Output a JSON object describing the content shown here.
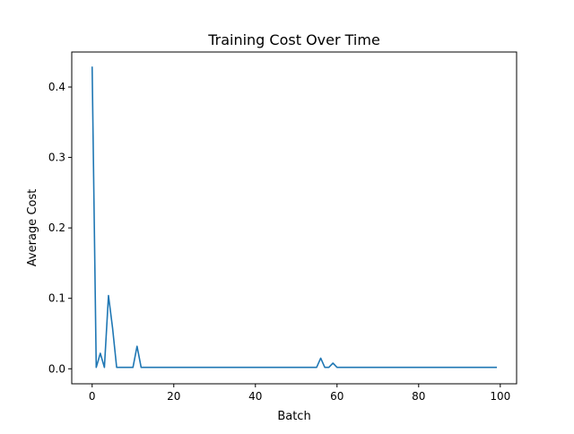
{
  "chart_data": {
    "type": "line",
    "title": "Training Cost Over Time",
    "xlabel": "Batch",
    "ylabel": "Average Cost",
    "xlim": [
      -5,
      104
    ],
    "ylim": [
      -0.0213,
      0.4497
    ],
    "xticks": [
      0,
      20,
      40,
      60,
      80,
      100
    ],
    "yticks": [
      0.0,
      0.1,
      0.2,
      0.3,
      0.4
    ],
    "xtick_labels": [
      "0",
      "20",
      "40",
      "60",
      "80",
      "100"
    ],
    "ytick_labels": [
      "0.0",
      "0.1",
      "0.2",
      "0.3",
      "0.4"
    ],
    "grid": false,
    "series": [
      {
        "color": "#1f77b4",
        "x": [
          0,
          1,
          2,
          3,
          4,
          5,
          6,
          7,
          8,
          9,
          10,
          11,
          12,
          13,
          14,
          15,
          16,
          17,
          18,
          19,
          20,
          21,
          22,
          23,
          24,
          25,
          26,
          27,
          28,
          29,
          30,
          31,
          32,
          33,
          34,
          35,
          36,
          37,
          38,
          39,
          40,
          41,
          42,
          43,
          44,
          45,
          46,
          47,
          48,
          49,
          50,
          51,
          52,
          53,
          54,
          55,
          56,
          57,
          58,
          59,
          60,
          61,
          62,
          63,
          64,
          65,
          66,
          67,
          68,
          69,
          70,
          71,
          72,
          73,
          74,
          75,
          76,
          77,
          78,
          79,
          80,
          81,
          82,
          83,
          84,
          85,
          86,
          87,
          88,
          89,
          90,
          91,
          92,
          93,
          94,
          95,
          96,
          97,
          98,
          99
        ],
        "values": [
          0.428,
          0.002,
          0.022,
          0.002,
          0.104,
          0.058,
          0.002,
          0.002,
          0.002,
          0.002,
          0.002,
          0.032,
          0.002,
          0.002,
          0.002,
          0.002,
          0.002,
          0.002,
          0.002,
          0.002,
          0.002,
          0.002,
          0.002,
          0.002,
          0.002,
          0.002,
          0.002,
          0.002,
          0.002,
          0.002,
          0.002,
          0.002,
          0.002,
          0.002,
          0.002,
          0.002,
          0.002,
          0.002,
          0.002,
          0.002,
          0.002,
          0.002,
          0.002,
          0.002,
          0.002,
          0.002,
          0.002,
          0.002,
          0.002,
          0.002,
          0.002,
          0.002,
          0.002,
          0.002,
          0.002,
          0.002,
          0.015,
          0.002,
          0.002,
          0.008,
          0.002,
          0.002,
          0.002,
          0.002,
          0.002,
          0.002,
          0.002,
          0.002,
          0.002,
          0.002,
          0.002,
          0.002,
          0.002,
          0.002,
          0.002,
          0.002,
          0.002,
          0.002,
          0.002,
          0.002,
          0.002,
          0.002,
          0.002,
          0.002,
          0.002,
          0.002,
          0.002,
          0.002,
          0.002,
          0.002,
          0.002,
          0.002,
          0.002,
          0.002,
          0.002,
          0.002,
          0.002,
          0.002,
          0.002,
          0.002
        ]
      }
    ]
  }
}
